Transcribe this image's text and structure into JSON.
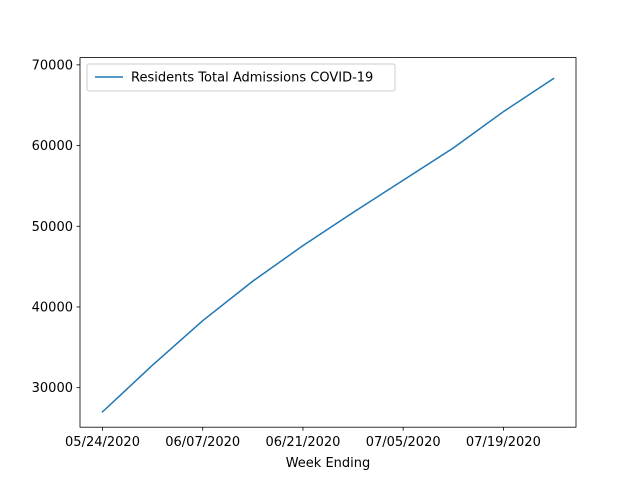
{
  "chart_data": {
    "type": "line",
    "title": "",
    "xlabel": "Week Ending",
    "ylabel": "",
    "x": [
      "05/24/2020",
      "05/31/2020",
      "06/07/2020",
      "06/14/2020",
      "06/21/2020",
      "06/28/2020",
      "07/05/2020",
      "07/12/2020",
      "07/19/2020",
      "07/26/2020"
    ],
    "x_ticks": [
      "05/24/2020",
      "06/07/2020",
      "06/21/2020",
      "07/05/2020",
      "07/19/2020"
    ],
    "y_ticks": [
      30000,
      40000,
      50000,
      60000,
      70000
    ],
    "ylim": [
      25100,
      70900
    ],
    "series": [
      {
        "name": "Residents Total Admissions COVID-19",
        "color": "#1f77b4",
        "values": [
          27000,
          32800,
          38300,
          43200,
          47600,
          51700,
          55700,
          59700,
          64200,
          68300
        ]
      }
    ],
    "legend": "top-left",
    "grid": false
  }
}
